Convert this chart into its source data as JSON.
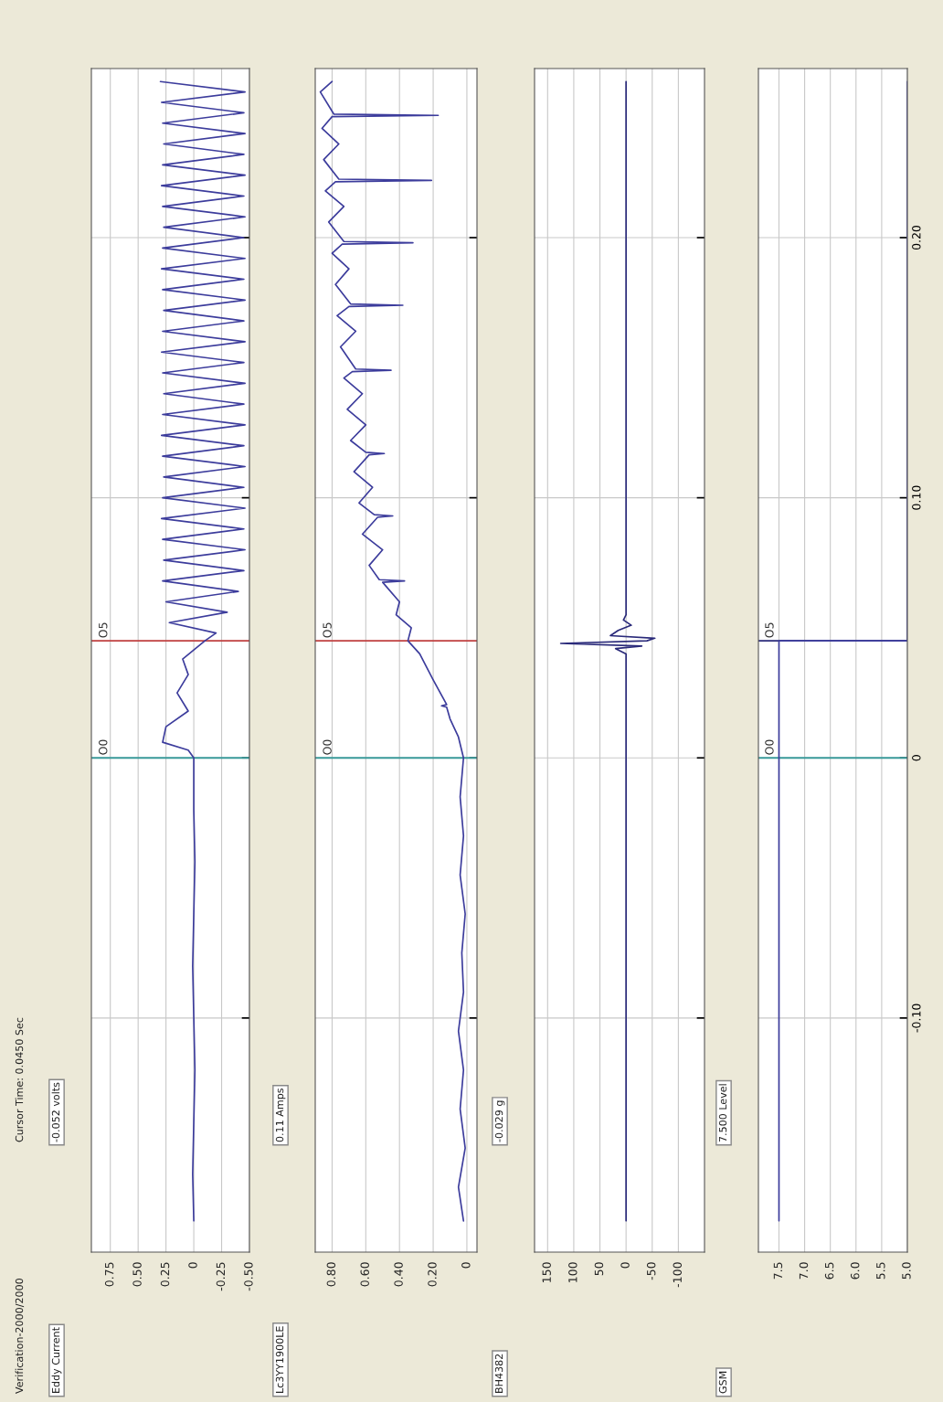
{
  "chart_data": [
    {
      "type": "line",
      "title": "Eddy Current",
      "subtitle": "-0.052 volts",
      "annotations": [
        "Verification-2000/2000",
        "Cursor Time: 0.0450 Sec"
      ],
      "x": [
        0.0,
        0.01,
        0.0,
        -0.01,
        0.0,
        0.01,
        0.0,
        -0.01,
        0.0,
        0.0,
        0.05,
        0.28,
        0.25,
        0.05,
        0.15,
        0.05,
        0.1,
        -0.1,
        -0.2,
        0.22,
        -0.3,
        0.25,
        -0.4,
        0.28,
        -0.45,
        0.27,
        -0.46,
        0.28,
        -0.45,
        0.29,
        -0.46,
        0.28,
        -0.45,
        0.27,
        -0.46,
        0.28,
        -0.45,
        0.29,
        -0.46,
        0.28,
        -0.45,
        0.27,
        -0.46,
        0.28,
        -0.45,
        0.29,
        -0.46,
        0.28,
        -0.45,
        0.27,
        -0.46,
        0.28,
        -0.45,
        0.29,
        -0.46,
        0.28,
        -0.45,
        0.27,
        -0.46,
        0.28,
        -0.45,
        0.29,
        -0.46,
        0.28,
        -0.45,
        0.27,
        -0.46,
        0.28,
        -0.45,
        0.29,
        -0.46,
        0.3
      ],
      "series": [
        {
          "color": "#3c3c9c",
          "values": [
            -0.178,
            -0.16,
            -0.14,
            -0.12,
            -0.1,
            -0.08,
            -0.06,
            -0.04,
            -0.02,
            0.0,
            0.003,
            0.006,
            0.012,
            0.018,
            0.025,
            0.032,
            0.038,
            0.045,
            0.048,
            0.052,
            0.056,
            0.06,
            0.064,
            0.068,
            0.072,
            0.076,
            0.08,
            0.084,
            0.088,
            0.092,
            0.096,
            0.1,
            0.104,
            0.108,
            0.112,
            0.116,
            0.12,
            0.124,
            0.128,
            0.132,
            0.136,
            0.14,
            0.144,
            0.148,
            0.152,
            0.156,
            0.16,
            0.164,
            0.168,
            0.172,
            0.176,
            0.18,
            0.184,
            0.188,
            0.192,
            0.196,
            0.2,
            0.204,
            0.208,
            0.212,
            0.216,
            0.22,
            0.224,
            0.228,
            0.232,
            0.236,
            0.24,
            0.244,
            0.248,
            0.252,
            0.256,
            0.26
          ]
        }
      ],
      "ylim": [
        -0.19,
        0.265
      ],
      "yticks": [
        {
          "value": -0.1,
          "label": null
        },
        {
          "value": 0,
          "label": null
        },
        {
          "value": 0.1,
          "label": null
        },
        {
          "value": 0.2,
          "label": null
        }
      ],
      "xlim": [
        0.92,
        -0.5
      ],
      "xticks": [
        0.75,
        {
          "value": 0.5,
          "label": "0.50"
        },
        0.25,
        0,
        -0.25,
        {
          "value": -0.5,
          "label": "-0.50"
        }
      ],
      "grid": true,
      "tick_labels": "x",
      "ref_lines": [
        {
          "axis": "y",
          "value": 0,
          "label": "O0",
          "color": "#3a9a9a"
        },
        {
          "axis": "y",
          "value": 0.045,
          "label": "O5",
          "color": "#c04040"
        }
      ]
    },
    {
      "type": "line",
      "title": "Lc3YY1900LE",
      "subtitle": "0.11 Amps",
      "x": [
        0.02,
        0.05,
        0.01,
        0.04,
        0.02,
        0.05,
        0.02,
        0.03,
        0.01,
        0.04,
        0.02,
        0.04,
        0.02,
        0.05,
        0.1,
        0.12,
        0.15,
        0.12,
        0.2,
        0.28,
        0.35,
        0.33,
        0.42,
        0.4,
        0.5,
        0.37,
        0.52,
        0.58,
        0.5,
        0.62,
        0.53,
        0.44,
        0.55,
        0.64,
        0.56,
        0.67,
        0.58,
        0.49,
        0.6,
        0.69,
        0.6,
        0.71,
        0.62,
        0.73,
        0.68,
        0.45,
        0.66,
        0.75,
        0.66,
        0.77,
        0.7,
        0.38,
        0.69,
        0.78,
        0.7,
        0.8,
        0.74,
        0.32,
        0.73,
        0.82,
        0.73,
        0.84,
        0.78,
        0.21,
        0.76,
        0.85,
        0.76,
        0.86,
        0.8,
        0.17,
        0.79,
        0.87,
        0.8
      ],
      "series": [
        {
          "color": "#3c3c9c",
          "values": [
            -0.178,
            -0.165,
            -0.15,
            -0.135,
            -0.12,
            -0.105,
            -0.09,
            -0.075,
            -0.06,
            -0.045,
            -0.03,
            -0.015,
            0.0,
            0.008,
            0.015,
            0.0195,
            0.02,
            0.0205,
            0.03,
            0.04,
            0.045,
            0.05,
            0.055,
            0.06,
            0.0675,
            0.068,
            0.0685,
            0.074,
            0.08,
            0.086,
            0.0925,
            0.093,
            0.0935,
            0.098,
            0.104,
            0.11,
            0.1165,
            0.117,
            0.1175,
            0.122,
            0.128,
            0.134,
            0.14,
            0.146,
            0.1485,
            0.149,
            0.1495,
            0.158,
            0.164,
            0.17,
            0.1735,
            0.174,
            0.1745,
            0.182,
            0.188,
            0.194,
            0.1975,
            0.198,
            0.1985,
            0.206,
            0.212,
            0.218,
            0.2215,
            0.222,
            0.2225,
            0.23,
            0.236,
            0.242,
            0.2465,
            0.247,
            0.2475,
            0.256,
            0.26
          ]
        }
      ],
      "ylim": [
        -0.19,
        0.265
      ],
      "yticks": [
        {
          "value": -0.1,
          "label": null
        },
        {
          "value": 0,
          "label": null
        },
        {
          "value": 0.1,
          "label": null
        },
        {
          "value": 0.2,
          "label": null
        }
      ],
      "xlim": [
        0.9,
        -0.06
      ],
      "xticks": [
        {
          "value": 0.8,
          "label": "0.80"
        },
        {
          "value": 0.6,
          "label": "0.60"
        },
        {
          "value": 0.4,
          "label": "0.40"
        },
        {
          "value": 0.2,
          "label": "0.20"
        },
        0
      ],
      "grid": true,
      "tick_labels": "x",
      "ref_lines": [
        {
          "axis": "y",
          "value": 0,
          "label": "O0",
          "color": "#3a9a9a"
        },
        {
          "axis": "y",
          "value": 0.045,
          "label": "O5",
          "color": "#c04040"
        }
      ]
    },
    {
      "type": "line",
      "title": "BH4382",
      "subtitle": "-0.029 g",
      "x": [
        0,
        0,
        20,
        -30,
        125,
        -40,
        -55,
        30,
        15,
        -10,
        5,
        0,
        0
      ],
      "series": [
        {
          "color": "#2a2a7a",
          "values": [
            -0.178,
            0.04,
            0.042,
            0.043,
            0.044,
            0.045,
            0.046,
            0.047,
            0.049,
            0.051,
            0.053,
            0.055,
            0.26
          ]
        }
      ],
      "ylim": [
        -0.19,
        0.265
      ],
      "yticks": [
        {
          "value": -0.1,
          "label": null
        },
        {
          "value": 0,
          "label": null
        },
        {
          "value": 0.1,
          "label": null
        },
        {
          "value": 0.2,
          "label": null
        }
      ],
      "xlim": [
        175,
        -150
      ],
      "xticks": [
        150,
        100,
        50,
        0,
        -50,
        -100
      ],
      "grid": true,
      "tick_labels": "x"
    },
    {
      "type": "line",
      "title": "GSM",
      "subtitle": "7.500 Level",
      "x": [
        7.5,
        7.5,
        5.0,
        5.0
      ],
      "series": [
        {
          "color": "#3c3c9c",
          "values": [
            -0.178,
            0.045,
            0.045,
            0.26
          ]
        }
      ],
      "ylim": [
        -0.19,
        0.265
      ],
      "yticks": [
        {
          "value": -0.1,
          "label": "-0.10"
        },
        0,
        {
          "value": 0.1,
          "label": "0.10"
        },
        {
          "value": 0.2,
          "label": "0.20"
        }
      ],
      "xlim": [
        7.9,
        5.0
      ],
      "xticks": [
        7.5,
        {
          "value": 7,
          "label": "7.0"
        },
        6.5,
        {
          "value": 6,
          "label": "6.0"
        },
        5.5,
        {
          "value": 5,
          "label": "5.0"
        }
      ],
      "grid": true,
      "ref_lines": [
        {
          "axis": "y",
          "value": 0,
          "label": "O0",
          "color": "#3a9a9a"
        },
        {
          "axis": "y",
          "value": 0.045,
          "label": "O5",
          "color": "#2a2a7a"
        }
      ]
    }
  ]
}
